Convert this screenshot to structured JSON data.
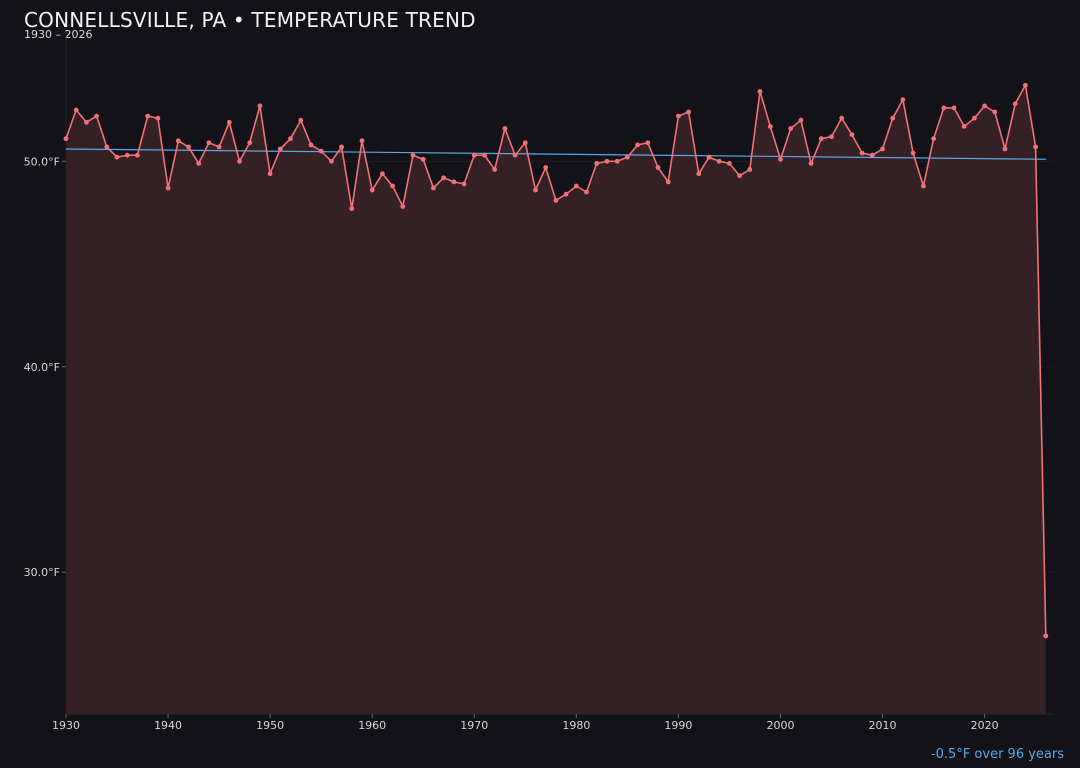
{
  "chart_data": {
    "type": "line",
    "title": "CONNELLSVILLE, PA • TEMPERATURE TREND",
    "subtitle": "1930 – 2026",
    "xlabel": "",
    "ylabel": "",
    "x_ticks": [
      "1930",
      "1940",
      "1950",
      "1960",
      "1970",
      "1980",
      "1990",
      "2000",
      "2010",
      "2020"
    ],
    "y_ticks": [
      "30.0°F",
      "40.0°F",
      "50.0°F"
    ],
    "xlim": [
      1930,
      2026.8
    ],
    "ylim": [
      23.1,
      56.1
    ],
    "grid": true,
    "legend": "none",
    "annotation": "-0.5°F over 96 years",
    "colors": {
      "line": "#f07178",
      "fill": "#352025",
      "trend": "#5aa9e6",
      "background": "#131218"
    },
    "series": [
      {
        "x": [
          1930,
          1931,
          1932,
          1933,
          1934,
          1935,
          1936,
          1937,
          1938,
          1939,
          1940,
          1941,
          1942,
          1943,
          1944,
          1945,
          1946,
          1947,
          1948,
          1949,
          1950,
          1951,
          1952,
          1953,
          1954,
          1955,
          1956,
          1957,
          1958,
          1959,
          1960,
          1961,
          1962,
          1963,
          1964,
          1965,
          1966,
          1967,
          1968,
          1969,
          1970,
          1971,
          1972,
          1973,
          1974,
          1975,
          1976,
          1977,
          1978,
          1979,
          1980,
          1981,
          1982,
          1983,
          1984,
          1985,
          1986,
          1987,
          1988,
          1989,
          1990,
          1991,
          1992,
          1993,
          1994,
          1995,
          1996,
          1997,
          1998,
          1999,
          2000,
          2001,
          2002,
          2003,
          2004,
          2005,
          2006,
          2007,
          2008,
          2009,
          2010,
          2011,
          2012,
          2013,
          2014,
          2015,
          2016,
          2017,
          2018,
          2019,
          2020,
          2021,
          2022,
          2023,
          2024,
          2025,
          2026
        ],
        "values": [
          51.1,
          52.5,
          51.9,
          52.2,
          50.7,
          50.2,
          50.3,
          50.3,
          52.2,
          52.1,
          48.7,
          51.0,
          50.7,
          49.9,
          50.9,
          50.7,
          51.9,
          50.0,
          50.9,
          52.7,
          49.4,
          50.6,
          51.1,
          52.0,
          50.8,
          50.5,
          50.0,
          50.7,
          47.7,
          51.0,
          48.6,
          49.4,
          48.8,
          47.8,
          50.3,
          50.1,
          48.7,
          49.2,
          49.0,
          48.9,
          50.3,
          50.3,
          49.6,
          51.6,
          50.3,
          50.9,
          48.6,
          49.7,
          48.1,
          48.4,
          48.8,
          48.5,
          49.9,
          50.0,
          50.0,
          50.2,
          50.8,
          50.9,
          49.7,
          49.0,
          52.2,
          52.4,
          49.4,
          50.2,
          50.0,
          49.9,
          49.3,
          49.6,
          53.4,
          51.7,
          50.1,
          51.6,
          52.0,
          49.9,
          51.1,
          51.2,
          52.1,
          51.3,
          50.4,
          50.3,
          50.6,
          52.1,
          53.0,
          50.4,
          48.8,
          51.1,
          52.6,
          52.6,
          51.7,
          52.1,
          52.7,
          52.4,
          50.6,
          52.8,
          53.7,
          50.7,
          26.9
        ]
      }
    ],
    "trend": {
      "x": [
        1930,
        2026
      ],
      "values": [
        50.6,
        50.1
      ]
    }
  }
}
